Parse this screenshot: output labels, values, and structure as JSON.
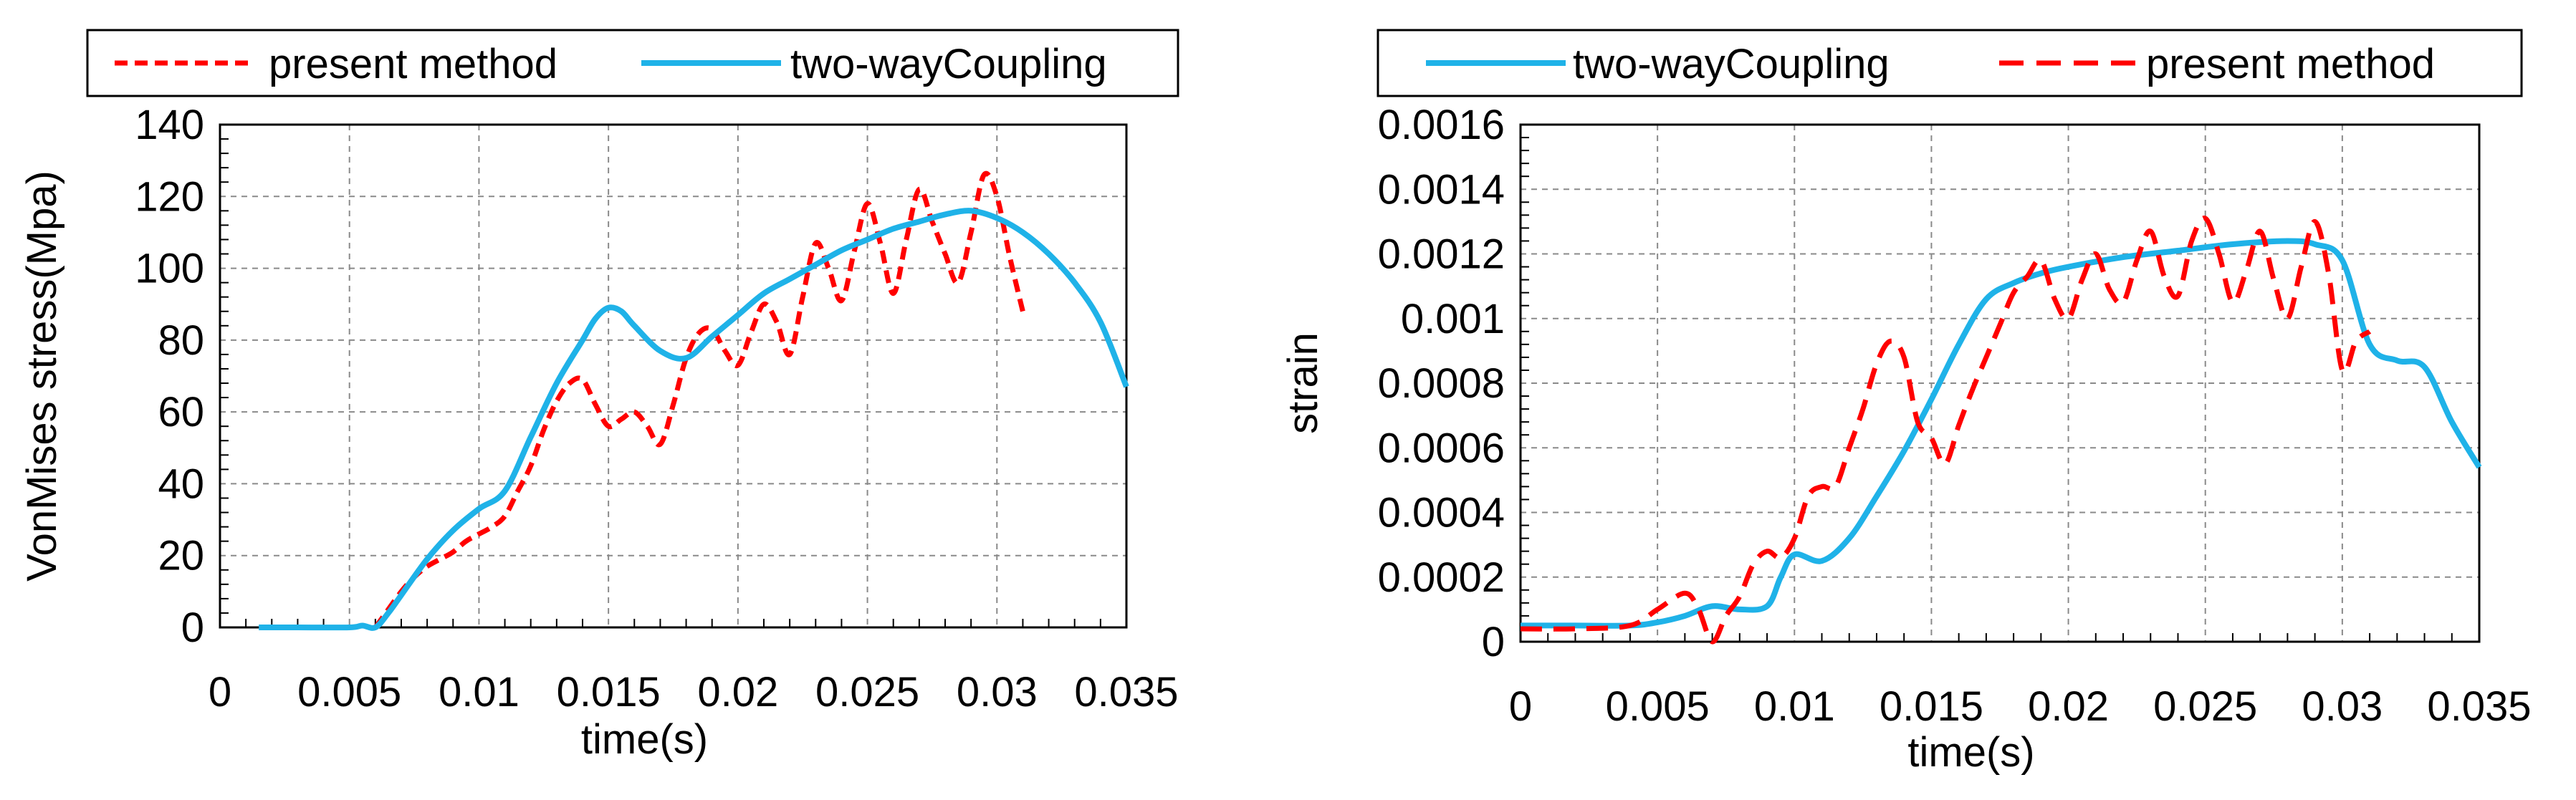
{
  "chart_data": [
    {
      "type": "line",
      "title": "",
      "xlabel": "time(s)",
      "ylabel": "VonMises stress(Mpa)",
      "xlim": [
        0,
        0.035
      ],
      "ylim": [
        0,
        140
      ],
      "xticks": [
        0,
        0.005,
        0.01,
        0.015,
        0.02,
        0.025,
        0.03,
        0.035
      ],
      "xtick_labels": [
        "0",
        "0.005",
        "0.01",
        "0.015",
        "0.02",
        "0.025",
        "0.03",
        "0.035"
      ],
      "yticks": [
        0,
        20,
        40,
        60,
        80,
        100,
        120,
        140
      ],
      "ytick_labels": [
        "0",
        "20",
        "40",
        "60",
        "80",
        "100",
        "120",
        "140"
      ],
      "grid": true,
      "legend_position": "top",
      "series": [
        {
          "name": "present method",
          "color": "#ff0000",
          "style": "dashed",
          "x": [
            0.006,
            0.0065,
            0.007,
            0.0075,
            0.008,
            0.0085,
            0.009,
            0.0095,
            0.01,
            0.0105,
            0.011,
            0.0115,
            0.012,
            0.0125,
            0.013,
            0.0135,
            0.014,
            0.0145,
            0.015,
            0.0155,
            0.016,
            0.0165,
            0.017,
            0.0175,
            0.018,
            0.0185,
            0.019,
            0.0195,
            0.02,
            0.0205,
            0.021,
            0.0215,
            0.022,
            0.0225,
            0.023,
            0.0235,
            0.024,
            0.0245,
            0.025,
            0.0255,
            0.026,
            0.0265,
            0.027,
            0.0275,
            0.028,
            0.0285,
            0.029,
            0.0295,
            0.03,
            0.0305,
            0.031
          ],
          "y": [
            0,
            5,
            10,
            14,
            17,
            19,
            21,
            24,
            26,
            28,
            31,
            38,
            45,
            55,
            63,
            68,
            69,
            62,
            56,
            58,
            60,
            56,
            51,
            62,
            75,
            82,
            83,
            77,
            73,
            82,
            90,
            85,
            76,
            92,
            107,
            100,
            91,
            105,
            118,
            107,
            93,
            108,
            122,
            113,
            104,
            96,
            110,
            126,
            120,
            103,
            88
          ]
        },
        {
          "name": "two-wayCoupling",
          "color": "#1fb2e8",
          "style": "solid",
          "x": [
            0.0015,
            0.003,
            0.005,
            0.0055,
            0.006,
            0.0065,
            0.007,
            0.008,
            0.009,
            0.01,
            0.011,
            0.012,
            0.013,
            0.014,
            0.0145,
            0.015,
            0.0155,
            0.016,
            0.017,
            0.018,
            0.019,
            0.02,
            0.021,
            0.022,
            0.023,
            0.024,
            0.025,
            0.026,
            0.027,
            0.028,
            0.029,
            0.03,
            0.031,
            0.032,
            0.033,
            0.034,
            0.035
          ],
          "y": [
            0,
            0,
            0,
            0.5,
            0,
            4,
            9,
            19,
            27,
            33,
            38,
            53,
            68,
            80,
            86,
            89,
            88,
            84,
            77,
            75,
            81,
            87,
            93,
            97,
            101,
            105,
            108,
            111,
            113,
            115,
            116,
            114,
            110,
            104,
            96,
            85,
            67
          ]
        }
      ]
    },
    {
      "type": "line",
      "title": "",
      "xlabel": "time(s)",
      "ylabel": "strain",
      "xlim": [
        0,
        0.035
      ],
      "ylim": [
        0,
        0.0016
      ],
      "xticks": [
        0,
        0.005,
        0.01,
        0.015,
        0.02,
        0.025,
        0.03,
        0.035
      ],
      "xtick_labels": [
        "0",
        "0.005",
        "0.01",
        "0.015",
        "0.02",
        "0.025",
        "0.03",
        "0.035"
      ],
      "yticks": [
        0,
        0.0002,
        0.0004,
        0.0006,
        0.0008,
        0.001,
        0.0012,
        0.0014,
        0.0016
      ],
      "ytick_labels": [
        "0",
        "0.0002",
        "0.0004",
        "0.0006",
        "0.0008",
        "0.001",
        "0.0012",
        "0.0014",
        "0.0016"
      ],
      "grid": true,
      "legend_position": "top",
      "series": [
        {
          "name": "two-wayCoupling",
          "color": "#1fb2e8",
          "style": "solid",
          "x": [
            0,
            0.002,
            0.004,
            0.005,
            0.006,
            0.007,
            0.008,
            0.009,
            0.0095,
            0.01,
            0.011,
            0.012,
            0.013,
            0.014,
            0.015,
            0.016,
            0.017,
            0.018,
            0.019,
            0.02,
            0.022,
            0.024,
            0.026,
            0.028,
            0.029,
            0.03,
            0.031,
            0.032,
            0.033,
            0.034,
            0.035
          ],
          "y": [
            5e-05,
            5e-05,
            5e-05,
            6e-05,
            8e-05,
            0.00011,
            0.0001,
            0.00011,
            0.0002,
            0.00027,
            0.00025,
            0.00032,
            0.00045,
            0.00059,
            0.00075,
            0.00092,
            0.00106,
            0.00111,
            0.00114,
            0.00116,
            0.00119,
            0.00121,
            0.00123,
            0.00124,
            0.00123,
            0.00118,
            0.00092,
            0.00087,
            0.00085,
            0.00068,
            0.00054
          ]
        },
        {
          "name": "present method",
          "color": "#ff0000",
          "style": "dashed",
          "x": [
            0,
            0.002,
            0.004,
            0.005,
            0.006,
            0.0065,
            0.007,
            0.0075,
            0.008,
            0.0085,
            0.009,
            0.0095,
            0.01,
            0.0105,
            0.011,
            0.0115,
            0.012,
            0.0125,
            0.013,
            0.0135,
            0.014,
            0.0145,
            0.015,
            0.0155,
            0.016,
            0.0165,
            0.017,
            0.0175,
            0.018,
            0.0185,
            0.019,
            0.0195,
            0.02,
            0.0205,
            0.021,
            0.0215,
            0.022,
            0.0225,
            0.023,
            0.0235,
            0.024,
            0.0245,
            0.025,
            0.0255,
            0.026,
            0.0265,
            0.027,
            0.0275,
            0.028,
            0.0285,
            0.029,
            0.0295,
            0.03,
            0.0305,
            0.031
          ],
          "y": [
            4e-05,
            4e-05,
            5e-05,
            0.0001,
            0.00015,
            0.0001,
            0.0,
            8e-05,
            0.00014,
            0.00024,
            0.00028,
            0.00026,
            0.00032,
            0.00045,
            0.00048,
            0.00048,
            0.0006,
            0.00072,
            0.00086,
            0.00093,
            0.00088,
            0.00068,
            0.00063,
            0.00055,
            0.00067,
            0.00078,
            0.00088,
            0.00098,
            0.00108,
            0.00113,
            0.00118,
            0.00106,
            0.001,
            0.00112,
            0.0012,
            0.00109,
            0.00105,
            0.00118,
            0.00127,
            0.00113,
            0.00107,
            0.00124,
            0.00131,
            0.0012,
            0.00105,
            0.00115,
            0.00127,
            0.00112,
            0.001,
            0.00116,
            0.0013,
            0.00114,
            0.00084,
            0.00093,
            0.00096
          ]
        }
      ]
    }
  ]
}
